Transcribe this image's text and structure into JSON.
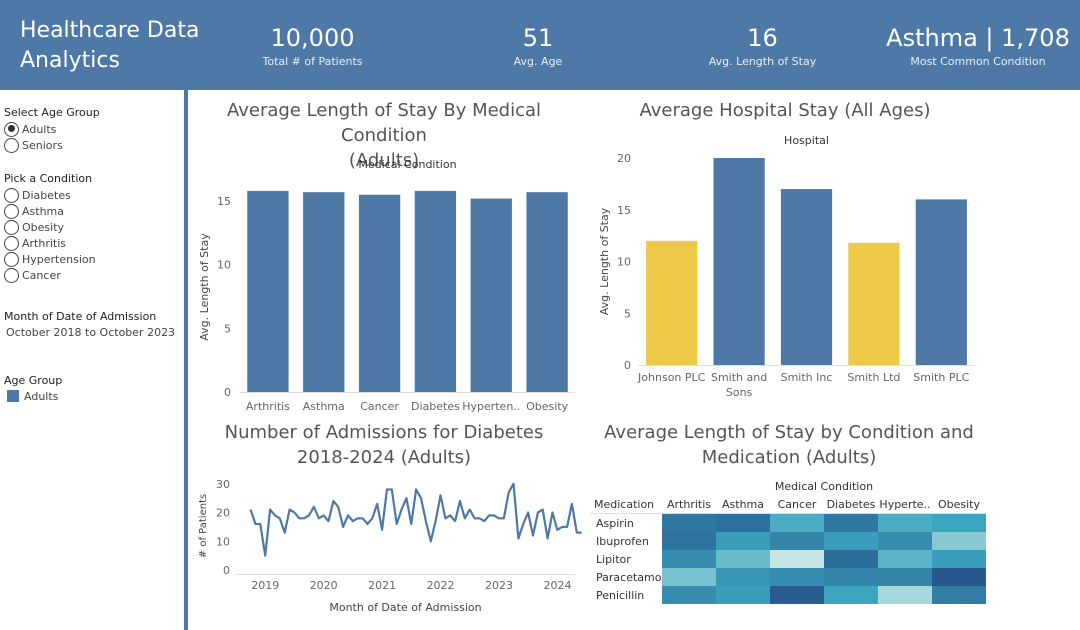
{
  "header": {
    "title_line1": "Healthcare Data",
    "title_line2": "Analytics",
    "kpis": [
      {
        "value": "10,000",
        "label": "Total # of Patients"
      },
      {
        "value": "51",
        "label": "Avg. Age"
      },
      {
        "value": "16",
        "label": "Avg. Length of Stay"
      },
      {
        "value": "Asthma | 1,708",
        "label": "Most Common Condition"
      }
    ]
  },
  "sidebar": {
    "age_group": {
      "heading": "Select Age Group",
      "options": [
        "Adults",
        "Seniors"
      ],
      "selected": "Adults"
    },
    "condition": {
      "heading": "Pick a Condition",
      "options": [
        "Diabetes",
        "Asthma",
        "Obesity",
        "Arthritis",
        "Hypertension",
        "Cancer"
      ],
      "selected": "Diabetes"
    },
    "date_filter": {
      "heading": "Month of Date of Admission",
      "value": "October 2018 to October 2023"
    },
    "legend": {
      "heading": "Age Group",
      "item": "Adults",
      "color": "#4e79a7"
    }
  },
  "colors": {
    "primary": "#4e79a7",
    "highlight": "#edc948",
    "axis": "#dddddd"
  },
  "chart_data": [
    {
      "id": "condition-stay",
      "type": "bar",
      "title_line1": "Average Length of Stay By Medical Condition",
      "title_line2": "(Adults)",
      "header_label": "Medical Condition",
      "ylabel": "Avg. Length of Stay",
      "categories": [
        "Arthritis",
        "Asthma",
        "Cancer",
        "Diabetes",
        "Hyperten..",
        "Obesity"
      ],
      "values": [
        15.8,
        15.7,
        15.5,
        15.8,
        15.2,
        15.7
      ],
      "ylim": [
        0,
        16.5
      ],
      "yticks": [
        0,
        5,
        10,
        15
      ]
    },
    {
      "id": "hospital-stay",
      "type": "bar",
      "title": "Average Hospital Stay (All Ages)",
      "header_label": "Hospital",
      "ylabel": "Avg. Length of Stay",
      "categories": [
        "Johnson PLC",
        "Smith and Sons",
        "Smith Inc",
        "Smith Ltd",
        "Smith PLC"
      ],
      "category_lines": [
        [
          "Johnson PLC"
        ],
        [
          "Smith and",
          "Sons"
        ],
        [
          "Smith Inc"
        ],
        [
          "Smith Ltd"
        ],
        [
          "Smith PLC"
        ]
      ],
      "values": [
        12.0,
        20.0,
        17.0,
        11.8,
        16.0
      ],
      "highlighted": [
        true,
        false,
        false,
        true,
        false
      ],
      "ylim": [
        0,
        20
      ],
      "yticks": [
        0,
        5,
        10,
        15,
        20
      ]
    },
    {
      "id": "admissions",
      "type": "line",
      "title_line1": "Number of Admissions for Diabetes",
      "title_line2": "2018-2024 (Adults)",
      "xlabel": "Month of Date of Admission",
      "ylabel": "# of Patients",
      "x_start": 2018.75,
      "x_step": 0.0833,
      "values": [
        21,
        16,
        16,
        5,
        21,
        19,
        18,
        13,
        21,
        20,
        18,
        18,
        19,
        22,
        18,
        19,
        17,
        24,
        22,
        15,
        19,
        17,
        18,
        18,
        16,
        18,
        23,
        14,
        28,
        28,
        16,
        21,
        25,
        16,
        28,
        25,
        17,
        10,
        17,
        26,
        18,
        19,
        17,
        24,
        18,
        21,
        18,
        18,
        17,
        19,
        19,
        18,
        18,
        27,
        30,
        11,
        16,
        20,
        12,
        20,
        21,
        11,
        20,
        14,
        15,
        15,
        23,
        13,
        13
      ],
      "ylim": [
        0,
        32
      ],
      "yticks": [
        0,
        10,
        20,
        30
      ],
      "xticks": [
        2019,
        2020,
        2021,
        2022,
        2023,
        2024
      ]
    },
    {
      "id": "medication-heatmap",
      "type": "heatmap",
      "title_line1": "Average Length of Stay by Condition and",
      "title_line2": "Medication (Adults)",
      "header_label": "Medical Condition",
      "row_header": "Medication",
      "columns": [
        "Arthritis",
        "Asthma",
        "Cancer",
        "Diabetes",
        "Hyperte..",
        "Obesity"
      ],
      "rows": [
        "Aspirin",
        "Ibuprofen",
        "Lipitor",
        "Paracetamol",
        "Penicillin"
      ],
      "values": [
        [
          0.78,
          0.82,
          0.45,
          0.78,
          0.45,
          0.5
        ],
        [
          0.8,
          0.55,
          0.7,
          0.55,
          0.65,
          0.25
        ],
        [
          0.65,
          0.35,
          0.05,
          0.85,
          0.4,
          0.55
        ],
        [
          0.3,
          0.6,
          0.65,
          0.7,
          0.7,
          0.98
        ],
        [
          0.65,
          0.55,
          0.95,
          0.5,
          0.15,
          0.75
        ]
      ]
    }
  ]
}
